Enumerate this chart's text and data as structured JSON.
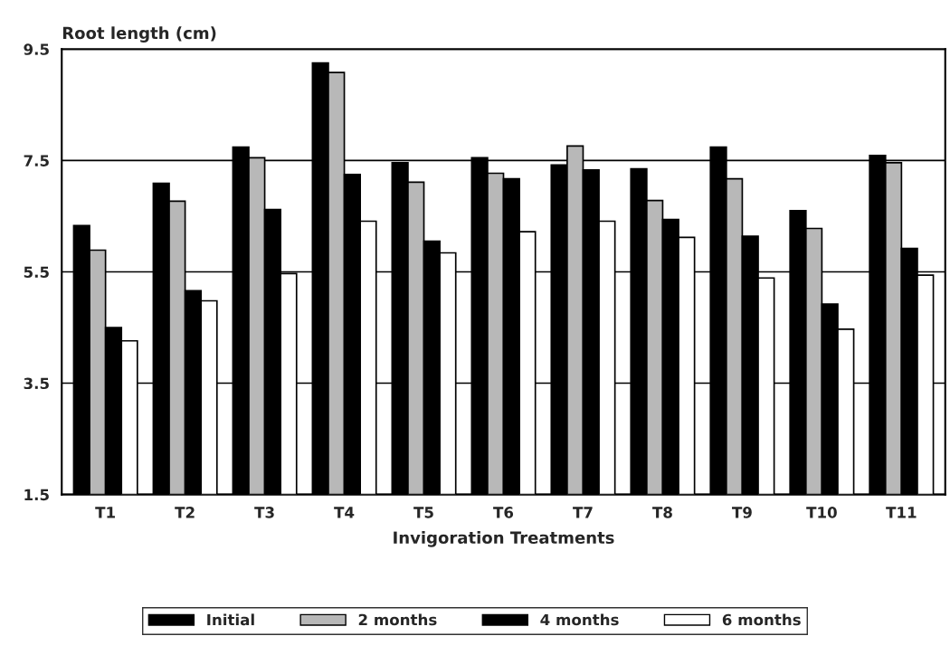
{
  "chart_data": {
    "type": "bar",
    "ylabel": "Root length (cm)",
    "xlabel": "Invigoration Treatments",
    "categories": [
      "T1",
      "T2",
      "T3",
      "T4",
      "T5",
      "T6",
      "T7",
      "T8",
      "T9",
      "T10",
      "T11"
    ],
    "series": [
      {
        "name": "Initial",
        "color": "#000000",
        "values": [
          6.33,
          7.09,
          7.74,
          9.25,
          7.46,
          7.55,
          7.42,
          7.35,
          7.74,
          6.6,
          7.59
        ]
      },
      {
        "name": "2 months",
        "color": "#b8b8b8",
        "values": [
          5.89,
          6.77,
          7.55,
          9.08,
          7.11,
          7.27,
          7.76,
          6.78,
          7.17,
          6.28,
          7.46
        ]
      },
      {
        "name": "4 months",
        "color": "#000000",
        "values": [
          4.5,
          5.16,
          6.62,
          7.25,
          6.05,
          7.17,
          7.33,
          6.44,
          6.14,
          4.92,
          5.92
        ]
      },
      {
        "name": "6 months",
        "color": "#ffffff",
        "values": [
          4.26,
          4.98,
          5.47,
          6.41,
          5.84,
          6.22,
          6.41,
          6.12,
          5.39,
          4.47,
          5.44
        ]
      }
    ],
    "ylim": [
      1.5,
      9.5
    ],
    "yticks": [
      1.5,
      3.5,
      5.5,
      7.5,
      9.5
    ],
    "grid": "y",
    "legend": "bottom"
  }
}
